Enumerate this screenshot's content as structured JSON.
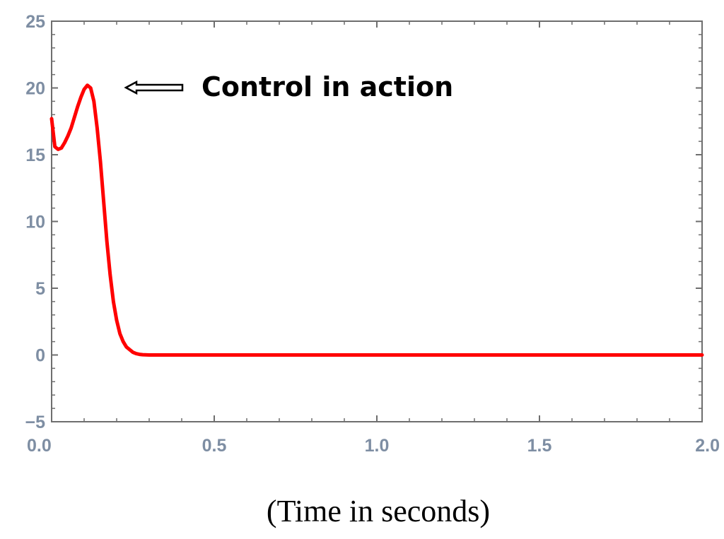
{
  "chart_data": {
    "type": "line",
    "title": "",
    "xlabel": "(Time in seconds)",
    "ylabel": "",
    "xlim": [
      0.0,
      2.0
    ],
    "ylim": [
      -5,
      25
    ],
    "x_ticks": [
      "0.0",
      "0.5",
      "1.0",
      "1.5",
      "2.0"
    ],
    "y_ticks": [
      "-5",
      "0",
      "5",
      "10",
      "15",
      "20",
      "25"
    ],
    "grid": false,
    "series": [
      {
        "color": "#ff0000",
        "x": [
          0.0,
          0.01,
          0.02,
          0.03,
          0.04,
          0.05,
          0.06,
          0.07,
          0.08,
          0.09,
          0.1,
          0.11,
          0.12,
          0.13,
          0.14,
          0.15,
          0.16,
          0.17,
          0.18,
          0.19,
          0.2,
          0.21,
          0.22,
          0.23,
          0.24,
          0.25,
          0.26,
          0.27,
          0.28,
          0.3,
          0.32,
          0.35,
          0.4,
          0.42,
          0.45,
          0.5,
          1.0,
          1.5,
          2.0
        ],
        "y": [
          17.7,
          15.6,
          15.4,
          15.5,
          15.9,
          16.4,
          17.0,
          17.8,
          18.6,
          19.3,
          19.9,
          20.2,
          20.0,
          19.0,
          17.0,
          14.5,
          11.5,
          8.5,
          6.0,
          4.0,
          2.6,
          1.6,
          1.0,
          0.6,
          0.4,
          0.2,
          0.1,
          0.05,
          0.02,
          0.0,
          0.0,
          0.0,
          0.0,
          0.0,
          0.0,
          0.0,
          0.0,
          0.0,
          0.0
        ]
      }
    ],
    "annotation": {
      "text": "Control in action",
      "arrow_direction": "left",
      "points_to_x": 0.15,
      "points_to_y": 20.2
    }
  }
}
